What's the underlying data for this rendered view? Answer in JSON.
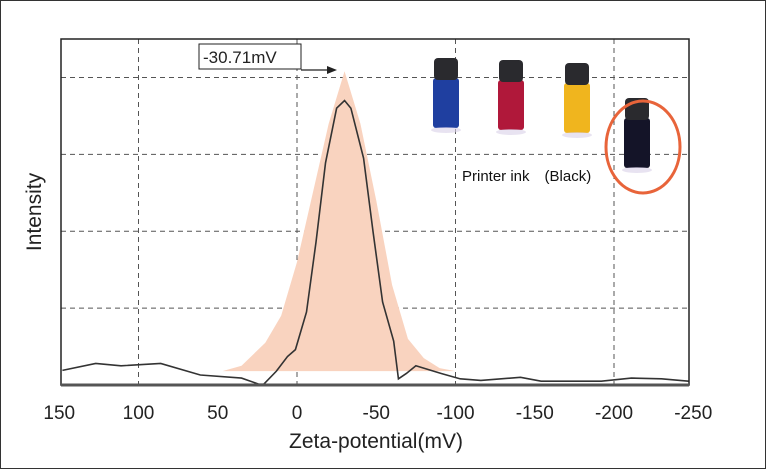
{
  "chart_data": {
    "type": "line",
    "title": "",
    "xlabel": "Zeta-potential(mV)",
    "ylabel": "Intensity",
    "xlim": [
      150,
      -250
    ],
    "ylim": [
      0,
      4.5
    ],
    "x_ticks": [
      "150",
      "100",
      "50",
      "0",
      "-50",
      "-100",
      "-150",
      "-200",
      "-250"
    ],
    "x_tick_values": [
      150,
      100,
      50,
      0,
      -50,
      -100,
      -150,
      -200,
      -250
    ],
    "grid": true,
    "grid_x_values": [
      100,
      0,
      -100,
      -200
    ],
    "grid_y_values": [
      1,
      2,
      3,
      4
    ],
    "series": [
      {
        "style": "filled-area",
        "color": "#f9d3bf",
        "x": [
          47,
          35,
          20,
          10,
          0,
          -10,
          -20,
          -30,
          -40,
          -50,
          -60,
          -70,
          -80,
          -90,
          -100
        ],
        "y": [
          0.18,
          0.25,
          0.55,
          0.9,
          1.6,
          2.5,
          3.4,
          4.08,
          3.4,
          2.4,
          1.3,
          0.6,
          0.35,
          0.22,
          0.18
        ]
      },
      {
        "style": "line",
        "color": "#333333",
        "x": [
          148,
          127,
          111,
          86,
          61,
          35,
          24,
          21,
          13,
          6,
          1,
          -6,
          -12,
          -18,
          -25,
          -30,
          -34,
          -42,
          -48,
          -54,
          -61,
          -64,
          -69,
          -75,
          -91,
          -103,
          -116,
          -141,
          -154,
          -192,
          -211,
          -230,
          -247
        ],
        "y": [
          0.19,
          0.28,
          0.25,
          0.28,
          0.13,
          0.09,
          0.01,
          0.01,
          0.18,
          0.37,
          0.46,
          0.95,
          1.86,
          2.89,
          3.6,
          3.7,
          3.6,
          2.95,
          1.99,
          1.08,
          0.57,
          0.08,
          0.15,
          0.25,
          0.15,
          0.08,
          0.06,
          0.1,
          0.05,
          0.05,
          0.09,
          0.08,
          0.05
        ]
      }
    ],
    "annotations": [
      {
        "text": "-30.71mV",
        "x": -25,
        "y": 4.08,
        "arrow": true
      }
    ]
  },
  "inset": {
    "caption": "Printer ink　(Black)",
    "bottle_colors": [
      "#1f3fa0",
      "#b0183a",
      "#f0b51e",
      "#141428"
    ],
    "highlight_color": "#e8643a"
  }
}
